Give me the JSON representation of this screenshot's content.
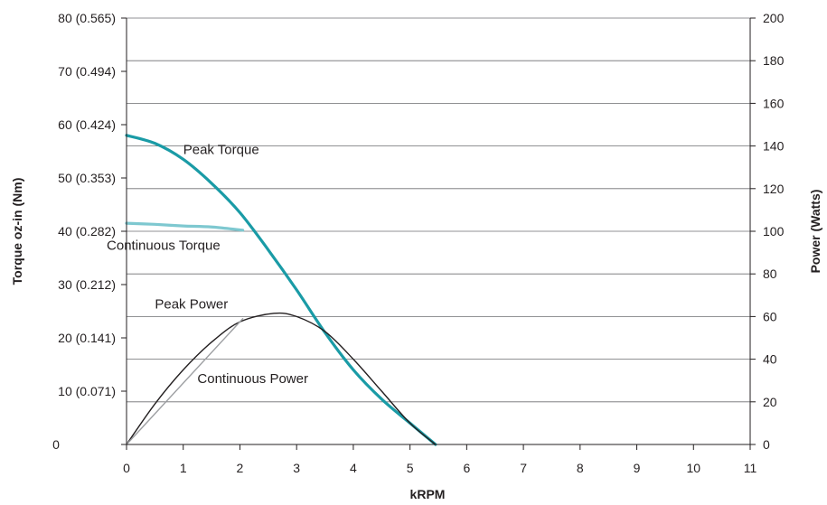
{
  "chart_data": {
    "type": "line",
    "title": "",
    "xlabel": "kRPM",
    "ylabel_left": "Torque oz-in (Nm)",
    "ylabel_right": "Power (Watts)",
    "xlim": [
      0,
      11
    ],
    "ylim_left": [
      0,
      80
    ],
    "ylim_right": [
      0,
      200
    ],
    "grid": true,
    "x_ticks": [
      "0",
      "1",
      "2",
      "3",
      "4",
      "5",
      "6",
      "7",
      "8",
      "9",
      "10",
      "11"
    ],
    "y_left_ticks": [
      {
        "value": 0,
        "label": "0"
      },
      {
        "value": 10,
        "label": "10 (0.071)"
      },
      {
        "value": 20,
        "label": "20 (0.141)"
      },
      {
        "value": 30,
        "label": "30 (0.212)"
      },
      {
        "value": 40,
        "label": "40 (0.282)"
      },
      {
        "value": 50,
        "label": "50 (0.353)"
      },
      {
        "value": 60,
        "label": "60 (0.424)"
      },
      {
        "value": 70,
        "label": "70 (0.494)"
      },
      {
        "value": 80,
        "label": "80 (0.565)"
      }
    ],
    "y_right_ticks": [
      {
        "value": 0,
        "label": "0"
      },
      {
        "value": 20,
        "label": "20"
      },
      {
        "value": 40,
        "label": "40"
      },
      {
        "value": 60,
        "label": "60"
      },
      {
        "value": 80,
        "label": "80"
      },
      {
        "value": 100,
        "label": "100"
      },
      {
        "value": 120,
        "label": "120"
      },
      {
        "value": 140,
        "label": "140"
      },
      {
        "value": 160,
        "label": "160"
      },
      {
        "value": 180,
        "label": "180"
      },
      {
        "value": 200,
        "label": "200"
      }
    ],
    "series": [
      {
        "name": "Peak Torque",
        "axis": "left",
        "color": "#1a9ba6",
        "points": [
          [
            0,
            58
          ],
          [
            0.5,
            56.5
          ],
          [
            1,
            53.5
          ],
          [
            1.5,
            49
          ],
          [
            2,
            43.5
          ],
          [
            2.5,
            36.5
          ],
          [
            3,
            29
          ],
          [
            3.5,
            21
          ],
          [
            4,
            14
          ],
          [
            4.5,
            8.5
          ],
          [
            5,
            4
          ],
          [
            5.45,
            0
          ]
        ]
      },
      {
        "name": "Continuous Torque",
        "axis": "left",
        "color": "#7ec8d0",
        "points": [
          [
            0,
            41.5
          ],
          [
            0.5,
            41.3
          ],
          [
            1,
            41
          ],
          [
            1.5,
            40.8
          ],
          [
            2.05,
            40.2
          ]
        ]
      },
      {
        "name": "Peak Power",
        "axis": "right",
        "color": "#231f20",
        "points": [
          [
            0,
            0
          ],
          [
            0.5,
            19
          ],
          [
            1,
            35
          ],
          [
            1.5,
            48
          ],
          [
            2,
            57.5
          ],
          [
            2.6,
            61.5
          ],
          [
            3,
            60
          ],
          [
            3.5,
            53
          ],
          [
            4,
            40
          ],
          [
            4.5,
            25
          ],
          [
            5,
            10
          ],
          [
            5.45,
            0
          ]
        ]
      },
      {
        "name": "Continuous Power",
        "axis": "right",
        "color": "#9d9fa2",
        "points": [
          [
            0,
            0
          ],
          [
            2.05,
            59
          ]
        ]
      }
    ],
    "annotations": [
      {
        "text": "Peak Torque",
        "x": 1.0,
        "y_left": 54.5
      },
      {
        "text": "Continuous Torque",
        "x": -0.35,
        "y_left": 36.5
      },
      {
        "text": "Peak Power",
        "x": 0.5,
        "y_left": 25.5
      },
      {
        "text": "Continuous Power",
        "x": 1.25,
        "y_left": 11.5
      }
    ]
  }
}
